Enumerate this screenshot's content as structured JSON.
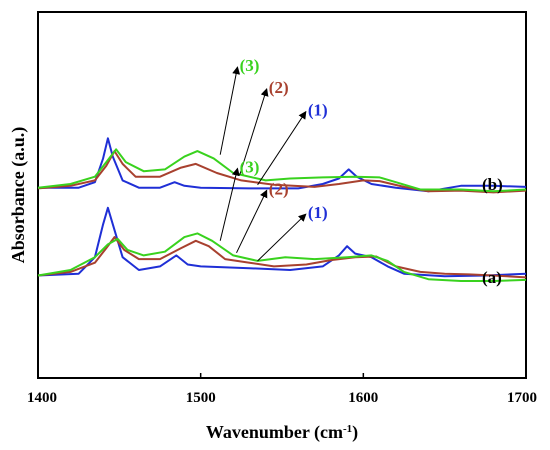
{
  "chart_data": {
    "type": "line",
    "xlabel": "Wavenumber (cm",
    "xlabel_sup": "-1",
    "xlabel_close": ")",
    "ylabel": "Absorbance (a.u.)",
    "xlim": [
      1400,
      1700
    ],
    "ylim": [
      0,
      1
    ],
    "x_ticks": [
      "1400",
      "1500",
      "1600",
      "1700"
    ],
    "y_ticks_shown": false,
    "grid": false,
    "colors": {
      "blue": "#1f2fd6",
      "red": "#a8412f",
      "green": "#39d21e"
    },
    "panels": [
      {
        "label": "(b)",
        "series": [
          {
            "name": "(1)",
            "color": "blue",
            "points": [
              [
                1400,
                0.52
              ],
              [
                1425,
                0.52
              ],
              [
                1435,
                0.535
              ],
              [
                1440,
                0.6
              ],
              [
                1443,
                0.655
              ],
              [
                1446,
                0.605
              ],
              [
                1452,
                0.54
              ],
              [
                1462,
                0.52
              ],
              [
                1475,
                0.52
              ],
              [
                1484,
                0.535
              ],
              [
                1490,
                0.525
              ],
              [
                1500,
                0.52
              ],
              [
                1530,
                0.518
              ],
              [
                1560,
                0.518
              ],
              [
                1575,
                0.53
              ],
              [
                1585,
                0.545
              ],
              [
                1591,
                0.57
              ],
              [
                1596,
                0.55
              ],
              [
                1605,
                0.53
              ],
              [
                1620,
                0.52
              ],
              [
                1640,
                0.51
              ],
              [
                1660,
                0.525
              ],
              [
                1680,
                0.525
              ],
              [
                1700,
                0.522
              ]
            ]
          },
          {
            "name": "(2)",
            "color": "red",
            "points": [
              [
                1400,
                0.518
              ],
              [
                1420,
                0.525
              ],
              [
                1435,
                0.54
              ],
              [
                1442,
                0.58
              ],
              [
                1447,
                0.62
              ],
              [
                1452,
                0.585
              ],
              [
                1460,
                0.55
              ],
              [
                1475,
                0.55
              ],
              [
                1488,
                0.575
              ],
              [
                1497,
                0.585
              ],
              [
                1510,
                0.56
              ],
              [
                1525,
                0.54
              ],
              [
                1545,
                0.528
              ],
              [
                1570,
                0.522
              ],
              [
                1585,
                0.53
              ],
              [
                1600,
                0.54
              ],
              [
                1610,
                0.538
              ],
              [
                1625,
                0.522
              ],
              [
                1640,
                0.51
              ],
              [
                1660,
                0.512
              ],
              [
                1680,
                0.507
              ],
              [
                1700,
                0.512
              ]
            ]
          },
          {
            "name": "(3)",
            "color": "green",
            "points": [
              [
                1400,
                0.52
              ],
              [
                1420,
                0.53
              ],
              [
                1435,
                0.55
              ],
              [
                1442,
                0.59
              ],
              [
                1448,
                0.625
              ],
              [
                1454,
                0.59
              ],
              [
                1465,
                0.565
              ],
              [
                1478,
                0.57
              ],
              [
                1490,
                0.605
              ],
              [
                1498,
                0.62
              ],
              [
                1508,
                0.6
              ],
              [
                1520,
                0.56
              ],
              [
                1540,
                0.54
              ],
              [
                1555,
                0.545
              ],
              [
                1575,
                0.548
              ],
              [
                1595,
                0.55
              ],
              [
                1610,
                0.548
              ],
              [
                1620,
                0.535
              ],
              [
                1635,
                0.515
              ],
              [
                1660,
                0.515
              ],
              [
                1680,
                0.51
              ],
              [
                1700,
                0.515
              ]
            ]
          }
        ]
      },
      {
        "label": "(a)",
        "series": [
          {
            "name": "(1)",
            "color": "blue",
            "points": [
              [
                1400,
                0.28
              ],
              [
                1425,
                0.285
              ],
              [
                1435,
                0.33
              ],
              [
                1440,
                0.42
              ],
              [
                1443,
                0.465
              ],
              [
                1446,
                0.42
              ],
              [
                1452,
                0.33
              ],
              [
                1462,
                0.295
              ],
              [
                1475,
                0.305
              ],
              [
                1485,
                0.335
              ],
              [
                1492,
                0.31
              ],
              [
                1500,
                0.305
              ],
              [
                1530,
                0.3
              ],
              [
                1555,
                0.295
              ],
              [
                1575,
                0.305
              ],
              [
                1585,
                0.335
              ],
              [
                1590,
                0.36
              ],
              [
                1595,
                0.34
              ],
              [
                1605,
                0.33
              ],
              [
                1615,
                0.305
              ],
              [
                1625,
                0.285
              ],
              [
                1650,
                0.278
              ],
              [
                1675,
                0.28
              ],
              [
                1700,
                0.285
              ]
            ]
          },
          {
            "name": "(2)",
            "color": "red",
            "points": [
              [
                1400,
                0.28
              ],
              [
                1420,
                0.29
              ],
              [
                1435,
                0.315
              ],
              [
                1442,
                0.355
              ],
              [
                1447,
                0.385
              ],
              [
                1453,
                0.35
              ],
              [
                1462,
                0.325
              ],
              [
                1475,
                0.325
              ],
              [
                1488,
                0.355
              ],
              [
                1497,
                0.375
              ],
              [
                1505,
                0.36
              ],
              [
                1515,
                0.325
              ],
              [
                1530,
                0.315
              ],
              [
                1545,
                0.305
              ],
              [
                1565,
                0.31
              ],
              [
                1580,
                0.322
              ],
              [
                1595,
                0.33
              ],
              [
                1608,
                0.332
              ],
              [
                1620,
                0.305
              ],
              [
                1635,
                0.29
              ],
              [
                1650,
                0.285
              ],
              [
                1665,
                0.283
              ],
              [
                1680,
                0.28
              ],
              [
                1700,
                0.275
              ]
            ]
          },
          {
            "name": "(3)",
            "color": "green",
            "points": [
              [
                1400,
                0.28
              ],
              [
                1420,
                0.295
              ],
              [
                1435,
                0.33
              ],
              [
                1443,
                0.365
              ],
              [
                1449,
                0.38
              ],
              [
                1455,
                0.35
              ],
              [
                1465,
                0.335
              ],
              [
                1478,
                0.345
              ],
              [
                1490,
                0.385
              ],
              [
                1498,
                0.395
              ],
              [
                1507,
                0.375
              ],
              [
                1520,
                0.335
              ],
              [
                1535,
                0.32
              ],
              [
                1552,
                0.33
              ],
              [
                1570,
                0.325
              ],
              [
                1590,
                0.33
              ],
              [
                1605,
                0.335
              ],
              [
                1615,
                0.32
              ],
              [
                1625,
                0.29
              ],
              [
                1640,
                0.27
              ],
              [
                1660,
                0.265
              ],
              [
                1680,
                0.265
              ],
              [
                1700,
                0.268
              ]
            ]
          }
        ]
      }
    ],
    "annotations": [
      {
        "text": "(3)",
        "color": "green",
        "panel": 0,
        "x": 1530,
        "y": 0.855,
        "arrow_to_x": 1512,
        "arrow_to_y": 0.61
      },
      {
        "text": "(2)",
        "color": "red",
        "panel": 0,
        "x": 1548,
        "y": 0.795,
        "arrow_to_x": 1524,
        "arrow_to_y": 0.555
      },
      {
        "text": "(1)",
        "color": "blue",
        "panel": 0,
        "x": 1572,
        "y": 0.733,
        "arrow_to_x": 1535,
        "arrow_to_y": 0.528
      },
      {
        "text": "(3)",
        "color": "green",
        "panel": 1,
        "x": 1530,
        "y": 0.578,
        "arrow_to_x": 1512,
        "arrow_to_y": 0.375
      },
      {
        "text": "(2)",
        "color": "red",
        "panel": 1,
        "x": 1548,
        "y": 0.518,
        "arrow_to_x": 1522,
        "arrow_to_y": 0.342
      },
      {
        "text": "(1)",
        "color": "blue",
        "panel": 1,
        "x": 1572,
        "y": 0.453,
        "arrow_to_x": 1535,
        "arrow_to_y": 0.32
      }
    ]
  }
}
